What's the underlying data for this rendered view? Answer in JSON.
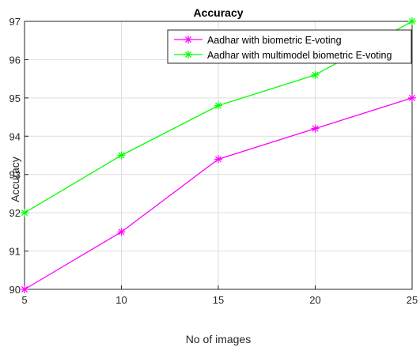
{
  "chart_data": {
    "type": "line",
    "title": "Accuracy",
    "xlabel": "No of images",
    "ylabel": "Accuracy",
    "x": [
      5,
      10,
      15,
      20,
      25
    ],
    "xlim": [
      5,
      25
    ],
    "ylim": [
      90,
      97
    ],
    "xticks": [
      "5",
      "10",
      "15",
      "20",
      "25"
    ],
    "yticks": [
      "90",
      "91",
      "92",
      "93",
      "94",
      "95",
      "96",
      "97"
    ],
    "grid": true,
    "legend_position": "top-right",
    "series": [
      {
        "name": "Aadhar with biometric E-voting",
        "color": "#ff00ff",
        "marker": "asterisk",
        "values": [
          90.0,
          91.5,
          93.4,
          94.2,
          95.0
        ]
      },
      {
        "name": "Aadhar with multimodel biometric E-voting",
        "color": "#00ff00",
        "marker": "asterisk",
        "values": [
          92.0,
          93.5,
          94.8,
          95.6,
          97.0
        ]
      }
    ]
  }
}
